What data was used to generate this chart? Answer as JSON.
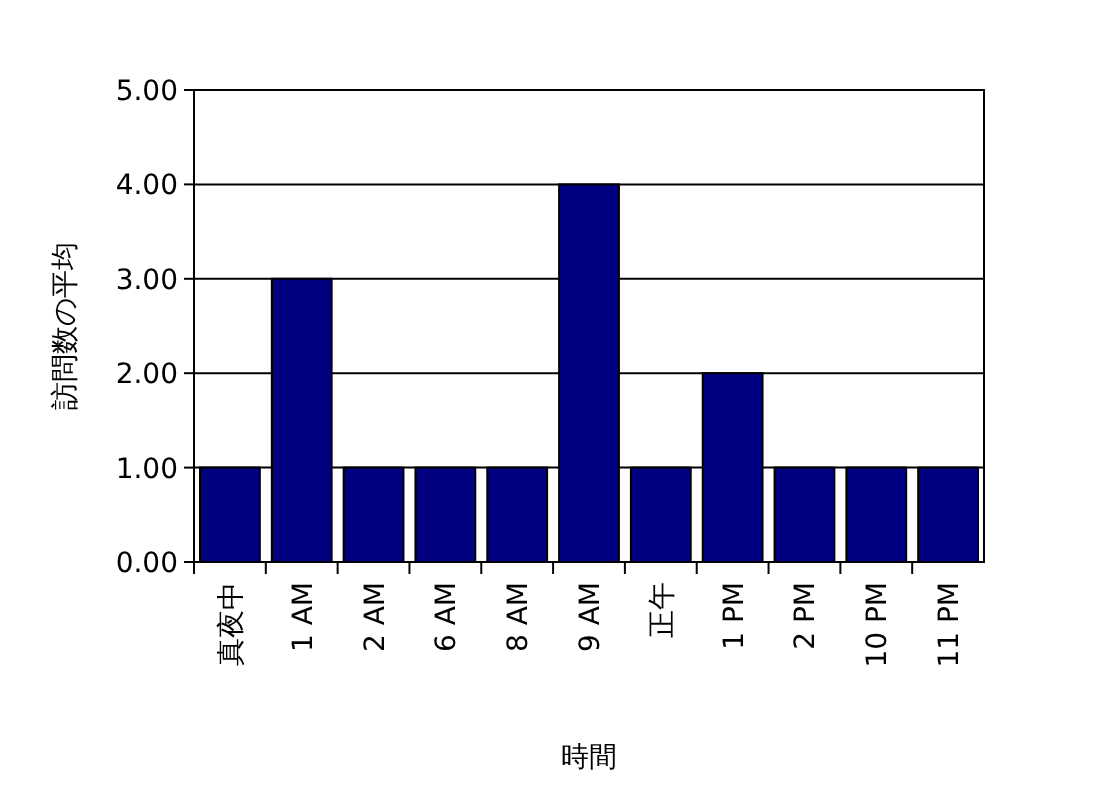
{
  "chart_data": {
    "type": "bar",
    "categories": [
      "真夜中",
      "1 AM",
      "2 AM",
      "6 AM",
      "8 AM",
      "9 AM",
      "正午",
      "1 PM",
      "2 PM",
      "10 PM",
      "11 PM"
    ],
    "values": [
      1,
      3,
      1,
      1,
      1,
      4,
      1,
      2,
      1,
      1,
      1
    ],
    "color": "#000080",
    "ylim": [
      0,
      5
    ],
    "yticks": [
      {
        "value": 0,
        "label": "0.00"
      },
      {
        "value": 1,
        "label": "1.00"
      },
      {
        "value": 2,
        "label": "2.00"
      },
      {
        "value": 3,
        "label": "3.00"
      },
      {
        "value": 4,
        "label": "4.00"
      },
      {
        "value": 5,
        "label": "5.00"
      }
    ],
    "grid": "y",
    "xlabel": "時間",
    "ylabel": "訪問数の平均"
  }
}
